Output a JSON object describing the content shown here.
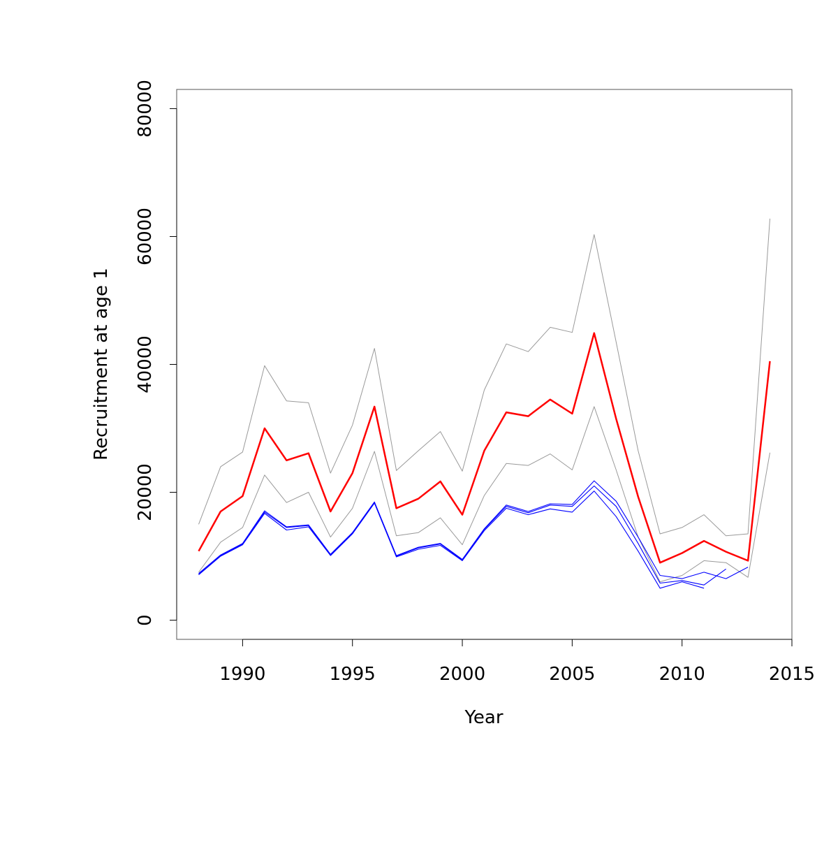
{
  "chart_data": {
    "type": "line",
    "title": "",
    "xlabel": "Year",
    "ylabel": "Recruitment at age 1",
    "xlim": [
      1987,
      2015
    ],
    "ylim": [
      -3000,
      83000
    ],
    "x_ticks": [
      1990,
      1995,
      2000,
      2005,
      2010,
      2015
    ],
    "y_ticks": [
      0,
      20000,
      40000,
      60000,
      80000
    ],
    "x_tick_labels": [
      "1990",
      "1995",
      "2000",
      "2005",
      "2010",
      "2015"
    ],
    "y_tick_labels": [
      "0",
      "20000",
      "40000",
      "60000",
      "80000"
    ],
    "grid": false,
    "legend": "none",
    "series": [
      {
        "role": "upper-bound",
        "color": "#999999",
        "x": [
          1988,
          1989,
          1990,
          1991,
          1992,
          1993,
          1994,
          1995,
          1996,
          1997,
          1998,
          1999,
          2000,
          2001,
          2002,
          2003,
          2004,
          2005,
          2006,
          2007,
          2008,
          2009,
          2010,
          2011,
          2012,
          2013,
          2014
        ],
        "values": [
          15000,
          24000,
          26300,
          39800,
          34300,
          34000,
          23000,
          30500,
          42500,
          23400,
          26500,
          29500,
          23300,
          36000,
          43200,
          42000,
          45800,
          45000,
          60300,
          43500,
          26500,
          13500,
          14500,
          16500,
          13200,
          13500,
          62800
        ]
      },
      {
        "role": "lower-bound",
        "color": "#999999",
        "x": [
          1988,
          1989,
          1990,
          1991,
          1992,
          1993,
          1994,
          1995,
          1996,
          1997,
          1998,
          1999,
          2000,
          2001,
          2002,
          2003,
          2004,
          2005,
          2006,
          2007,
          2008,
          2009,
          2010,
          2011,
          2012,
          2013,
          2014
        ],
        "values": [
          7500,
          12200,
          14500,
          22700,
          18400,
          20000,
          13000,
          17500,
          26400,
          13200,
          13700,
          16000,
          11800,
          19500,
          24500,
          24200,
          26000,
          23500,
          33400,
          23500,
          13000,
          6000,
          7000,
          9300,
          9000,
          6700,
          26200
        ]
      },
      {
        "role": "estimate",
        "color": "#ff0000",
        "x": [
          1988,
          1989,
          1990,
          1991,
          1992,
          1993,
          1994,
          1995,
          1996,
          1997,
          1998,
          1999,
          2000,
          2001,
          2002,
          2003,
          2004,
          2005,
          2006,
          2007,
          2008,
          2009,
          2010,
          2011,
          2012,
          2013,
          2014
        ],
        "values": [
          10800,
          17000,
          19400,
          30000,
          25000,
          26100,
          17000,
          23000,
          33400,
          17500,
          19000,
          21700,
          16500,
          26500,
          32500,
          31900,
          34500,
          32300,
          44900,
          31500,
          19300,
          9000,
          10500,
          12400,
          10700,
          9300,
          40500
        ]
      },
      {
        "role": "retrospective",
        "color": "#0000ff",
        "x": [
          1988,
          1989,
          1990,
          1991,
          1992,
          1993,
          1994,
          1995,
          1996,
          1997,
          1998,
          1999,
          2000,
          2001,
          2002,
          2003,
          2004,
          2005,
          2006,
          2007,
          2008,
          2009,
          2010,
          2011,
          2012,
          2013
        ],
        "values": [
          7300,
          10200,
          12000,
          17100,
          14600,
          14900,
          10300,
          13700,
          18500,
          10100,
          11400,
          12000,
          9500,
          14300,
          18000,
          17000,
          18200,
          18100,
          21800,
          18600,
          13000,
          7000,
          6500,
          7500,
          6500,
          8300
        ]
      },
      {
        "role": "retrospective",
        "color": "#0000ff",
        "x": [
          1988,
          1989,
          1990,
          1991,
          1992,
          1993,
          1994,
          1995,
          1996,
          1997,
          1998,
          1999,
          2000,
          2001,
          2002,
          2003,
          2004,
          2005,
          2006,
          2007,
          2008,
          2009,
          2010,
          2011,
          2012
        ],
        "values": [
          7200,
          10100,
          11900,
          16900,
          14500,
          14800,
          10200,
          13600,
          18400,
          10000,
          11300,
          11900,
          9400,
          14200,
          17800,
          16800,
          18000,
          17800,
          21000,
          17800,
          12000,
          5800,
          6200,
          5500,
          8000
        ]
      },
      {
        "role": "retrospective",
        "color": "#0000ff",
        "x": [
          1988,
          1989,
          1990,
          1991,
          1992,
          1993,
          1994,
          1995,
          1996,
          1997,
          1998,
          1999,
          2000,
          2001,
          2002,
          2003,
          2004,
          2005,
          2006,
          2007,
          2008,
          2009,
          2010,
          2011
        ],
        "values": [
          7100,
          10000,
          11800,
          16700,
          14100,
          14600,
          10100,
          13500,
          18300,
          9900,
          11100,
          11700,
          9300,
          14000,
          17500,
          16500,
          17400,
          16900,
          20200,
          16200,
          10800,
          5000,
          6000,
          5000
        ]
      }
    ]
  }
}
